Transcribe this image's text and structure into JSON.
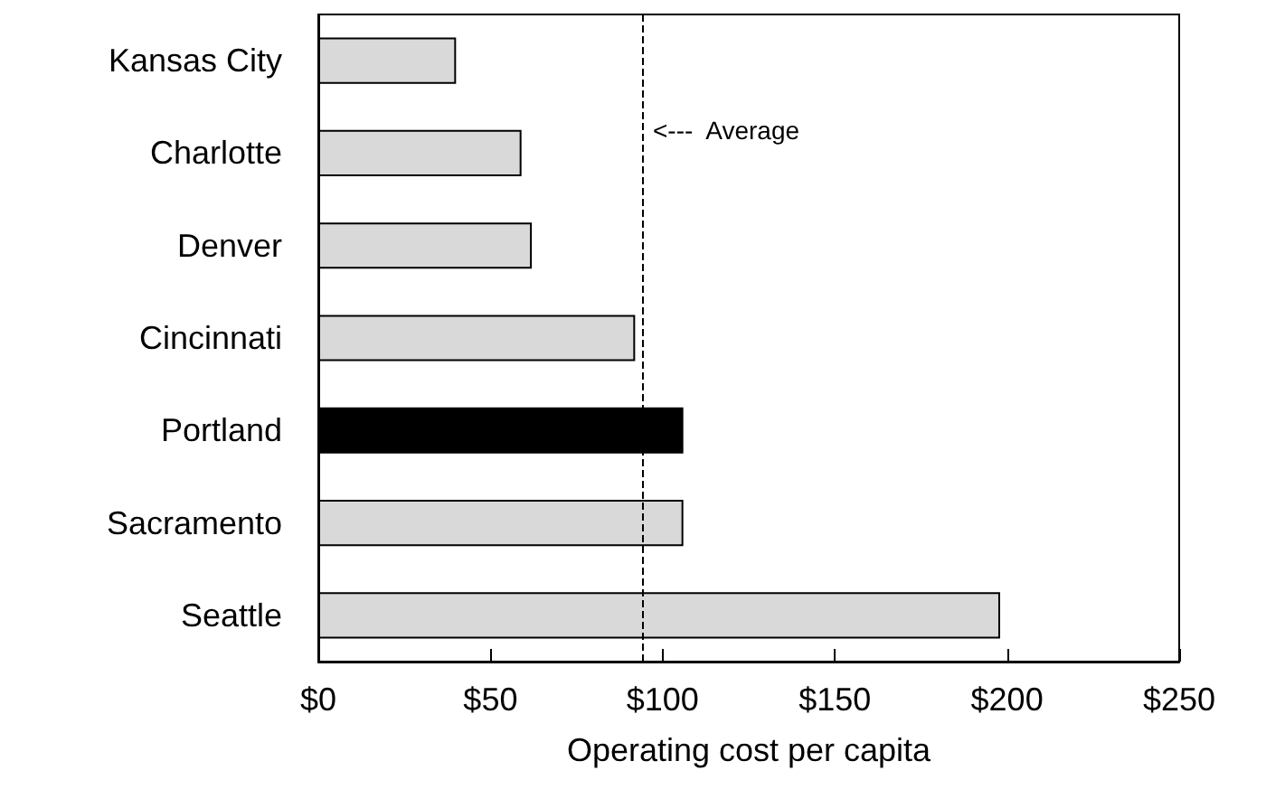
{
  "chart_data": {
    "type": "bar",
    "orientation": "horizontal",
    "xlabel": "Operating cost per capita",
    "categories": [
      "Kansas City",
      "Charlotte",
      "Denver",
      "Cincinnati",
      "Portland",
      "Sacramento",
      "Seattle"
    ],
    "values": [
      40,
      59,
      62,
      92,
      106,
      106,
      198
    ],
    "colors": [
      "#d9d9d9",
      "#d9d9d9",
      "#d9d9d9",
      "#d9d9d9",
      "#000000",
      "#d9d9d9",
      "#d9d9d9"
    ],
    "xlim": [
      0,
      250
    ],
    "xticks": [
      {
        "value": 0,
        "label": "$0"
      },
      {
        "value": 50,
        "label": "$50"
      },
      {
        "value": 100,
        "label": "$100"
      },
      {
        "value": 150,
        "label": "$150"
      },
      {
        "value": 200,
        "label": "$200"
      },
      {
        "value": 250,
        "label": "$250"
      }
    ],
    "ref_lines": [
      {
        "axis": "x",
        "value": 94,
        "label": "<---  Average",
        "line_style": "dashed",
        "color": "#000000"
      }
    ],
    "grid": false
  }
}
